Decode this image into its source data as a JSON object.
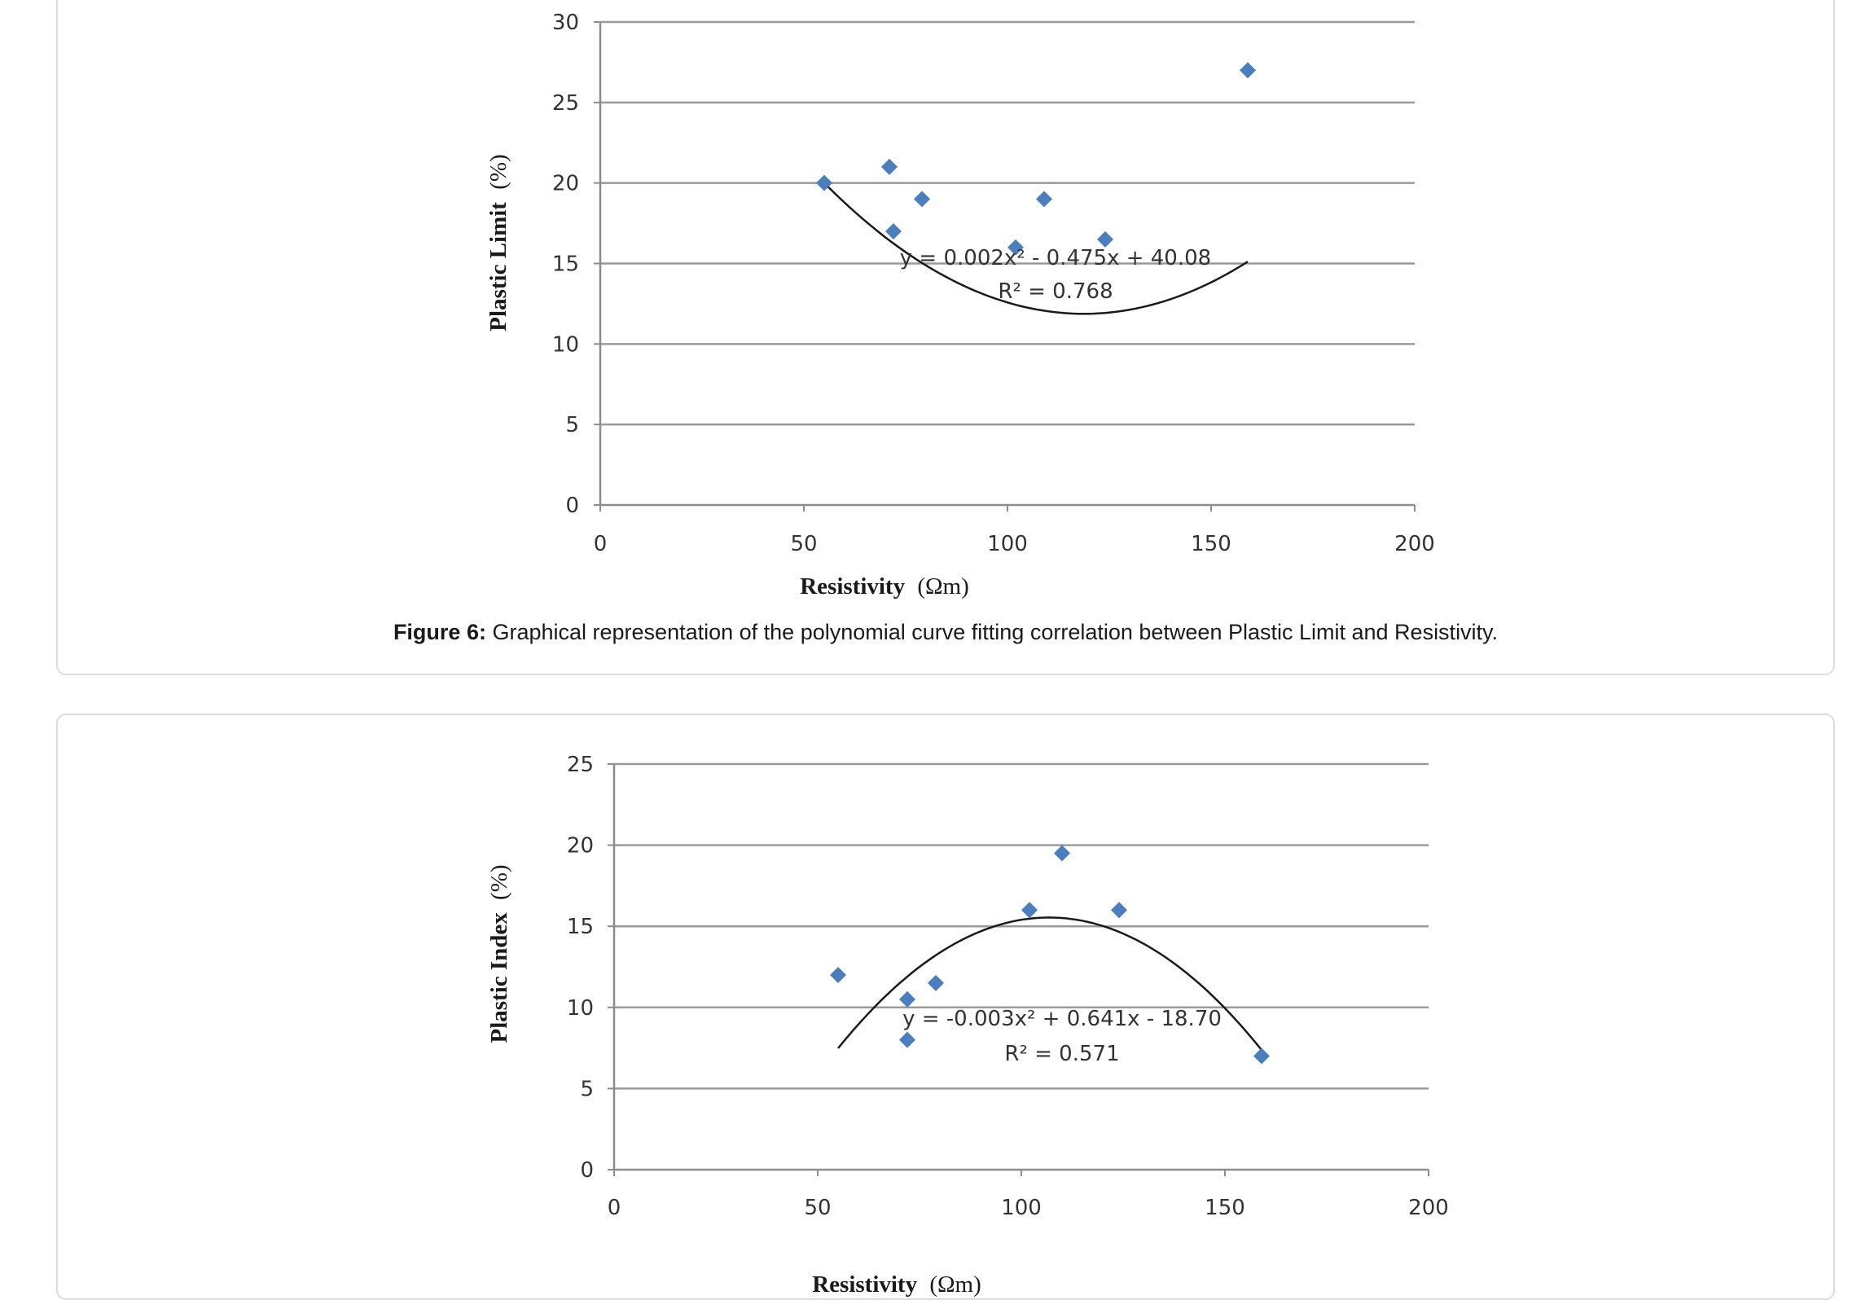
{
  "figures": [
    {
      "caption_label": "Figure 6:",
      "caption_text": "Graphical representation of the polynomial curve fitting correlation between Plastic Limit and Resistivity."
    },
    {
      "caption_label": "",
      "caption_text": ""
    }
  ],
  "chart_data": [
    {
      "type": "scatter",
      "title": "",
      "xlabel": "Resistivity",
      "xlabel_unit": "(Ωm)",
      "ylabel": "Plastic Limit",
      "ylabel_unit": "(%)",
      "xlim": [
        0,
        200
      ],
      "ylim": [
        0,
        30
      ],
      "xticks": [
        0,
        50,
        100,
        150,
        200
      ],
      "yticks": [
        0,
        5,
        10,
        15,
        20,
        25,
        30
      ],
      "grid": "horizontal",
      "marker": "diamond",
      "marker_color": "#4a7ebf",
      "points": [
        {
          "x": 55,
          "y": 20
        },
        {
          "x": 71,
          "y": 21
        },
        {
          "x": 72,
          "y": 17
        },
        {
          "x": 79,
          "y": 19
        },
        {
          "x": 102,
          "y": 16
        },
        {
          "x": 109,
          "y": 19
        },
        {
          "x": 124,
          "y": 16.5
        },
        {
          "x": 159,
          "y": 27
        }
      ],
      "trendline": {
        "type": "polynomial",
        "order": 2,
        "coefficients": [
          0.002,
          -0.475,
          40.08
        ],
        "x_range": [
          55,
          159
        ],
        "equation": "y = 0.002x² - 0.475x + 40.08",
        "r_squared": "R² = 0.768"
      }
    },
    {
      "type": "scatter",
      "title": "",
      "xlabel": "Resistivity",
      "xlabel_unit": "(Ωm)",
      "ylabel": "Plastic Index",
      "ylabel_unit": "(%)",
      "xlim": [
        0,
        200
      ],
      "ylim": [
        0,
        25
      ],
      "xticks": [
        0,
        50,
        100,
        150,
        200
      ],
      "yticks": [
        0,
        5,
        10,
        15,
        20,
        25
      ],
      "grid": "horizontal",
      "marker": "diamond",
      "marker_color": "#4a7ebf",
      "points": [
        {
          "x": 55,
          "y": 12
        },
        {
          "x": 72,
          "y": 10.5
        },
        {
          "x": 72,
          "y": 8
        },
        {
          "x": 79,
          "y": 11.5
        },
        {
          "x": 102,
          "y": 16
        },
        {
          "x": 110,
          "y": 19.5
        },
        {
          "x": 124,
          "y": 16
        },
        {
          "x": 159,
          "y": 7
        }
      ],
      "trendline": {
        "type": "polynomial",
        "order": 2,
        "coefficients": [
          -0.003,
          0.641,
          -18.7
        ],
        "x_range": [
          55,
          159
        ],
        "equation": "y = -0.003x² + 0.641x - 18.70",
        "r_squared": "R² = 0.571"
      }
    }
  ]
}
